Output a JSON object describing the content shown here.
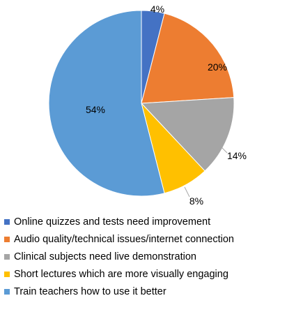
{
  "chart_data": {
    "type": "pie",
    "title": "",
    "legend_position": "bottom",
    "slices": [
      {
        "label": "Online quizzes and tests need improvement",
        "value": 4,
        "value_label": "4%",
        "color": "#4472C4"
      },
      {
        "label": "Audio quality/technical issues/internet connection",
        "value": 20,
        "value_label": "20%",
        "color": "#ED7D31"
      },
      {
        "label": "Clinical subjects need live demonstration",
        "value": 14,
        "value_label": "14%",
        "color": "#A5A5A5"
      },
      {
        "label": "Short lectures which are more visually engaging",
        "value": 8,
        "value_label": "8%",
        "color": "#FFC000"
      },
      {
        "label": "Train teachers how to use it better",
        "value": 54,
        "value_label": "54%",
        "color": "#5B9BD5"
      }
    ]
  }
}
